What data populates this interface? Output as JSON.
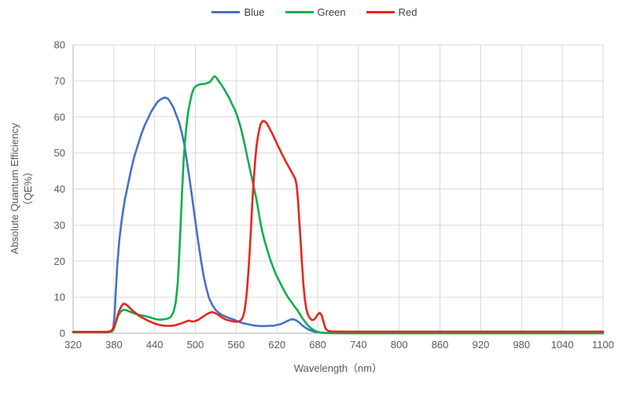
{
  "chart_data": {
    "type": "line",
    "title": "",
    "xlabel": "Wavelength（nm）",
    "ylabel": "Absolute Quantum Efficiency（QE%）",
    "ylabel_lines": [
      "Absolute Quantum Efficiency",
      "（QE%）"
    ],
    "xlim": [
      320,
      1100
    ],
    "ylim": [
      0,
      80
    ],
    "x_ticks": [
      320,
      380,
      440,
      500,
      560,
      620,
      680,
      740,
      800,
      860,
      920,
      980,
      1040,
      1100
    ],
    "y_ticks": [
      0,
      10,
      20,
      30,
      40,
      50,
      60,
      70,
      80
    ],
    "grid": true,
    "legend_position": "top-center",
    "series": [
      {
        "name": "Blue",
        "color": "#4472c4",
        "points": [
          [
            320,
            0.3
          ],
          [
            350,
            0.3
          ],
          [
            370,
            0.3
          ],
          [
            376,
            0.5
          ],
          [
            379,
            1.5
          ],
          [
            381,
            5
          ],
          [
            383,
            12
          ],
          [
            385,
            19
          ],
          [
            388,
            26
          ],
          [
            392,
            32
          ],
          [
            396,
            37
          ],
          [
            400,
            40.5
          ],
          [
            405,
            45
          ],
          [
            410,
            49
          ],
          [
            415,
            52
          ],
          [
            420,
            55
          ],
          [
            425,
            57.5
          ],
          [
            430,
            59.5
          ],
          [
            435,
            61.5
          ],
          [
            440,
            63
          ],
          [
            445,
            64.3
          ],
          [
            450,
            65
          ],
          [
            455,
            65.4
          ],
          [
            460,
            65
          ],
          [
            465,
            63.5
          ],
          [
            468,
            62.5
          ],
          [
            472,
            60.5
          ],
          [
            476,
            58.5
          ],
          [
            480,
            55.5
          ],
          [
            484,
            52
          ],
          [
            488,
            47
          ],
          [
            492,
            42
          ],
          [
            496,
            36.5
          ],
          [
            500,
            31
          ],
          [
            504,
            25.5
          ],
          [
            508,
            20.5
          ],
          [
            512,
            16
          ],
          [
            516,
            12.5
          ],
          [
            520,
            9.8
          ],
          [
            525,
            7.8
          ],
          [
            530,
            6.4
          ],
          [
            535,
            5.6
          ],
          [
            540,
            5
          ],
          [
            545,
            4.6
          ],
          [
            550,
            4.2
          ],
          [
            555,
            3.9
          ],
          [
            560,
            3.5
          ],
          [
            565,
            3.1
          ],
          [
            570,
            2.8
          ],
          [
            575,
            2.6
          ],
          [
            580,
            2.4
          ],
          [
            585,
            2.2
          ],
          [
            590,
            2.1
          ],
          [
            595,
            2
          ],
          [
            600,
            2
          ],
          [
            605,
            2
          ],
          [
            610,
            2.1
          ],
          [
            615,
            2.1
          ],
          [
            620,
            2.3
          ],
          [
            625,
            2.5
          ],
          [
            630,
            2.9
          ],
          [
            635,
            3.4
          ],
          [
            640,
            3.8
          ],
          [
            644,
            3.9
          ],
          [
            648,
            3.6
          ],
          [
            652,
            3.1
          ],
          [
            656,
            2.4
          ],
          [
            660,
            1.8
          ],
          [
            664,
            1.3
          ],
          [
            668,
            0.9
          ],
          [
            672,
            0.6
          ],
          [
            676,
            0.4
          ],
          [
            680,
            0.3
          ],
          [
            685,
            0.15
          ],
          [
            690,
            0.1
          ],
          [
            700,
            0.05
          ],
          [
            720,
            0
          ],
          [
            1100,
            0
          ]
        ]
      },
      {
        "name": "Green",
        "color": "#0fad4f",
        "points": [
          [
            320,
            0.3
          ],
          [
            350,
            0.3
          ],
          [
            370,
            0.3
          ],
          [
            377,
            0.5
          ],
          [
            380,
            1.2
          ],
          [
            383,
            3
          ],
          [
            386,
            4.8
          ],
          [
            390,
            6
          ],
          [
            394,
            6.5
          ],
          [
            398,
            6.4
          ],
          [
            402,
            6.1
          ],
          [
            406,
            5.8
          ],
          [
            410,
            5.5
          ],
          [
            415,
            5.2
          ],
          [
            420,
            5
          ],
          [
            425,
            4.8
          ],
          [
            430,
            4.6
          ],
          [
            435,
            4.3
          ],
          [
            440,
            4
          ],
          [
            445,
            3.8
          ],
          [
            450,
            3.8
          ],
          [
            455,
            3.9
          ],
          [
            460,
            4.1
          ],
          [
            464,
            4.6
          ],
          [
            468,
            6
          ],
          [
            471,
            8.5
          ],
          [
            474,
            14
          ],
          [
            477,
            25
          ],
          [
            480,
            38
          ],
          [
            483,
            49
          ],
          [
            486,
            56
          ],
          [
            489,
            61
          ],
          [
            492,
            64
          ],
          [
            495,
            66.5
          ],
          [
            498,
            68
          ],
          [
            502,
            68.7
          ],
          [
            506,
            69
          ],
          [
            510,
            69.1
          ],
          [
            514,
            69.2
          ],
          [
            518,
            69.4
          ],
          [
            522,
            69.8
          ],
          [
            525,
            70.6
          ],
          [
            528,
            71.3
          ],
          [
            531,
            70.9
          ],
          [
            534,
            70
          ],
          [
            538,
            69
          ],
          [
            542,
            67.8
          ],
          [
            546,
            66.5
          ],
          [
            550,
            65.2
          ],
          [
            554,
            63.5
          ],
          [
            558,
            62
          ],
          [
            562,
            60
          ],
          [
            566,
            57.5
          ],
          [
            570,
            54.5
          ],
          [
            574,
            51
          ],
          [
            578,
            47.5
          ],
          [
            582,
            44
          ],
          [
            586,
            40.5
          ],
          [
            590,
            37
          ],
          [
            594,
            32.5
          ],
          [
            598,
            28.5
          ],
          [
            602,
            25.5
          ],
          [
            606,
            23
          ],
          [
            610,
            20.5
          ],
          [
            614,
            18.5
          ],
          [
            618,
            16.5
          ],
          [
            622,
            15
          ],
          [
            626,
            13.5
          ],
          [
            630,
            12
          ],
          [
            634,
            10.7
          ],
          [
            638,
            9.5
          ],
          [
            642,
            8.5
          ],
          [
            646,
            7.4
          ],
          [
            650,
            6.4
          ],
          [
            654,
            5.2
          ],
          [
            658,
            4
          ],
          [
            662,
            3
          ],
          [
            666,
            2.1
          ],
          [
            670,
            1.4
          ],
          [
            674,
            0.9
          ],
          [
            678,
            0.5
          ],
          [
            682,
            0.3
          ],
          [
            686,
            0.2
          ],
          [
            690,
            0.1
          ],
          [
            700,
            0.05
          ],
          [
            720,
            0
          ],
          [
            1100,
            0
          ]
        ]
      },
      {
        "name": "Red",
        "color": "#e8251d",
        "points": [
          [
            320,
            0.4
          ],
          [
            350,
            0.4
          ],
          [
            370,
            0.4
          ],
          [
            376,
            0.6
          ],
          [
            379,
            1.2
          ],
          [
            382,
            2.6
          ],
          [
            385,
            4.6
          ],
          [
            388,
            6.3
          ],
          [
            391,
            7.5
          ],
          [
            394,
            8.2
          ],
          [
            397,
            8.1
          ],
          [
            400,
            7.7
          ],
          [
            404,
            6.9
          ],
          [
            408,
            6.2
          ],
          [
            412,
            5.6
          ],
          [
            416,
            5
          ],
          [
            420,
            4.5
          ],
          [
            425,
            4
          ],
          [
            430,
            3.5
          ],
          [
            435,
            3.1
          ],
          [
            440,
            2.7
          ],
          [
            445,
            2.4
          ],
          [
            450,
            2.2
          ],
          [
            455,
            2.1
          ],
          [
            460,
            2.05
          ],
          [
            465,
            2.1
          ],
          [
            470,
            2.2
          ],
          [
            475,
            2.5
          ],
          [
            480,
            2.8
          ],
          [
            484,
            3.1
          ],
          [
            488,
            3.4
          ],
          [
            491,
            3.5
          ],
          [
            494,
            3.3
          ],
          [
            497,
            3.3
          ],
          [
            500,
            3.4
          ],
          [
            504,
            3.7
          ],
          [
            508,
            4.2
          ],
          [
            512,
            4.7
          ],
          [
            516,
            5.2
          ],
          [
            520,
            5.6
          ],
          [
            524,
            5.9
          ],
          [
            528,
            5.7
          ],
          [
            532,
            5.3
          ],
          [
            536,
            4.8
          ],
          [
            540,
            4.3
          ],
          [
            545,
            3.8
          ],
          [
            550,
            3.5
          ],
          [
            555,
            3.3
          ],
          [
            560,
            3.2
          ],
          [
            564,
            3.3
          ],
          [
            567,
            3.6
          ],
          [
            570,
            4.5
          ],
          [
            572,
            6
          ],
          [
            574,
            8.5
          ],
          [
            576,
            12
          ],
          [
            578,
            17
          ],
          [
            580,
            23
          ],
          [
            582,
            30
          ],
          [
            584,
            37
          ],
          [
            586,
            43
          ],
          [
            588,
            48
          ],
          [
            590,
            52
          ],
          [
            592,
            54.5
          ],
          [
            594,
            56.5
          ],
          [
            596,
            58
          ],
          [
            599,
            58.9
          ],
          [
            602,
            58.8
          ],
          [
            605,
            58.2
          ],
          [
            608,
            57.2
          ],
          [
            612,
            55.8
          ],
          [
            616,
            54.2
          ],
          [
            620,
            52.6
          ],
          [
            624,
            51
          ],
          [
            628,
            49.5
          ],
          [
            632,
            48
          ],
          [
            636,
            46.6
          ],
          [
            640,
            45.3
          ],
          [
            644,
            43.9
          ],
          [
            647,
            42.8
          ],
          [
            649,
            41
          ],
          [
            651,
            37
          ],
          [
            653,
            31
          ],
          [
            655,
            25
          ],
          [
            657,
            19
          ],
          [
            659,
            13.5
          ],
          [
            661,
            9.5
          ],
          [
            663,
            7
          ],
          [
            665,
            5.5
          ],
          [
            668,
            4.3
          ],
          [
            671,
            3.7
          ],
          [
            674,
            3.7
          ],
          [
            677,
            4.3
          ],
          [
            680,
            5.2
          ],
          [
            683,
            5.7
          ],
          [
            686,
            4.9
          ],
          [
            688,
            3.5
          ],
          [
            690,
            2.2
          ],
          [
            692,
            1.2
          ],
          [
            695,
            0.7
          ],
          [
            700,
            0.5
          ],
          [
            720,
            0.45
          ],
          [
            800,
            0.45
          ],
          [
            900,
            0.45
          ],
          [
            1000,
            0.45
          ],
          [
            1100,
            0.45
          ]
        ]
      }
    ]
  },
  "style_colors": {
    "gridline": "#d9d9d9",
    "axis_line": "#bfbfbf",
    "tick_text": "#595959",
    "legend_text": "#3f3f3f"
  }
}
